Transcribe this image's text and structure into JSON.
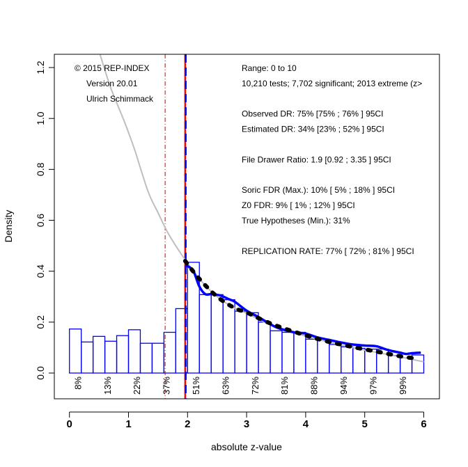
{
  "chart_data": {
    "type": "bar",
    "title": "",
    "xlabel": "absolute z-value",
    "ylabel": "Density",
    "xlim": [
      0,
      6
    ],
    "ylim": [
      -0.1,
      1.25
    ],
    "x_ticks": [
      "0",
      "1",
      "2",
      "3",
      "4",
      "5",
      "6"
    ],
    "x_tick_values": [
      0,
      1,
      2,
      3,
      4,
      5,
      6
    ],
    "y_ticks": [
      "0.0",
      "0.2",
      "0.4",
      "0.6",
      "0.8",
      "1.0",
      "1.2"
    ],
    "y_tick_values": [
      0.0,
      0.2,
      0.4,
      0.6,
      0.8,
      1.0,
      1.2
    ],
    "grid": false,
    "histogram": {
      "bin_width": 0.2,
      "bins": [
        {
          "x0": 0.0,
          "x1": 0.2,
          "density": 0.173
        },
        {
          "x0": 0.2,
          "x1": 0.4,
          "density": 0.122
        },
        {
          "x0": 0.4,
          "x1": 0.6,
          "density": 0.144
        },
        {
          "x0": 0.6,
          "x1": 0.8,
          "density": 0.125
        },
        {
          "x0": 0.8,
          "x1": 1.0,
          "density": 0.147
        },
        {
          "x0": 1.0,
          "x1": 1.2,
          "density": 0.17
        },
        {
          "x0": 1.2,
          "x1": 1.4,
          "density": 0.117
        },
        {
          "x0": 1.4,
          "x1": 1.6,
          "density": 0.117
        },
        {
          "x0": 1.6,
          "x1": 1.8,
          "density": 0.16
        },
        {
          "x0": 1.8,
          "x1": 2.0,
          "density": 0.253
        },
        {
          "x0": 2.0,
          "x1": 2.2,
          "density": 0.435
        },
        {
          "x0": 2.2,
          "x1": 2.4,
          "density": 0.308
        },
        {
          "x0": 2.4,
          "x1": 2.6,
          "density": 0.308
        },
        {
          "x0": 2.6,
          "x1": 2.8,
          "density": 0.288
        },
        {
          "x0": 2.8,
          "x1": 3.0,
          "density": 0.243
        },
        {
          "x0": 3.0,
          "x1": 3.2,
          "density": 0.237
        },
        {
          "x0": 3.2,
          "x1": 3.4,
          "density": 0.2
        },
        {
          "x0": 3.4,
          "x1": 3.6,
          "density": 0.166
        },
        {
          "x0": 3.6,
          "x1": 3.8,
          "density": 0.16
        },
        {
          "x0": 3.8,
          "x1": 4.0,
          "density": 0.16
        },
        {
          "x0": 4.0,
          "x1": 4.2,
          "density": 0.133
        },
        {
          "x0": 4.2,
          "x1": 4.4,
          "density": 0.133
        },
        {
          "x0": 4.4,
          "x1": 4.6,
          "density": 0.112
        },
        {
          "x0": 4.6,
          "x1": 4.8,
          "density": 0.103
        },
        {
          "x0": 4.8,
          "x1": 5.0,
          "density": 0.097
        },
        {
          "x0": 5.0,
          "x1": 5.2,
          "density": 0.094
        },
        {
          "x0": 5.2,
          "x1": 5.4,
          "density": 0.094
        },
        {
          "x0": 5.4,
          "x1": 5.6,
          "density": 0.069
        },
        {
          "x0": 5.6,
          "x1": 5.8,
          "density": 0.06
        },
        {
          "x0": 5.8,
          "x1": 6.0,
          "density": 0.071
        }
      ]
    },
    "series": [
      {
        "name": "gray-model-density",
        "color": "#bebebe",
        "style": "solid",
        "x": [
          0.52,
          0.7,
          0.93,
          1.1,
          1.33,
          1.5,
          1.65,
          1.8,
          1.96,
          2.2,
          2.5,
          2.8,
          3.0,
          3.3,
          3.6,
          4.0,
          4.5,
          5.0,
          5.5,
          6.0
        ],
        "y": [
          1.25,
          1.12,
          0.988,
          0.88,
          0.714,
          0.63,
          0.558,
          0.5,
          0.445,
          0.37,
          0.3,
          0.255,
          0.235,
          0.2,
          0.175,
          0.145,
          0.115,
          0.09,
          0.068,
          0.044
        ]
      },
      {
        "name": "blue-kernel-density",
        "color": "#0000ff",
        "style": "solid",
        "x": [
          1.96,
          2.0,
          2.1,
          2.2,
          2.3,
          2.4,
          2.55,
          2.7,
          2.8,
          3.0,
          3.2,
          3.5,
          3.8,
          4.0,
          4.2,
          4.4,
          4.6,
          4.8,
          5.0,
          5.2,
          5.4,
          5.6,
          5.7,
          5.8,
          5.95
        ],
        "y": [
          0.415,
          0.42,
          0.4,
          0.34,
          0.31,
          0.31,
          0.305,
          0.29,
          0.28,
          0.245,
          0.22,
          0.18,
          0.16,
          0.155,
          0.14,
          0.13,
          0.12,
          0.112,
          0.108,
          0.105,
          0.09,
          0.08,
          0.075,
          0.078,
          0.08
        ]
      },
      {
        "name": "black-dotted-fitted",
        "color": "#000000",
        "style": "dotted",
        "x": [
          1.96,
          2.2,
          2.5,
          2.8,
          3.0,
          3.3,
          3.6,
          4.0,
          4.3,
          4.6,
          5.0,
          5.3,
          5.6,
          5.9
        ],
        "y": [
          0.44,
          0.37,
          0.3,
          0.255,
          0.238,
          0.205,
          0.178,
          0.148,
          0.128,
          0.112,
          0.093,
          0.08,
          0.066,
          0.056
        ]
      }
    ],
    "vertical_lines": [
      {
        "name": "significance-line",
        "x": 1.96,
        "color": "#ff0000",
        "style": "solid"
      },
      {
        "name": "significance-line-blue",
        "x": 1.96,
        "color": "#0000ff",
        "style": "dashed"
      },
      {
        "name": "marginal-significance-line",
        "x": 1.65,
        "color": "#cd0000",
        "style": "dotdash"
      }
    ],
    "power_labels": [
      {
        "x": 0.15,
        "text": "8%"
      },
      {
        "x": 0.65,
        "text": "13%"
      },
      {
        "x": 1.15,
        "text": "22%"
      },
      {
        "x": 1.65,
        "text": "37%"
      },
      {
        "x": 2.15,
        "text": "51%"
      },
      {
        "x": 2.65,
        "text": "63%"
      },
      {
        "x": 3.15,
        "text": "72%"
      },
      {
        "x": 3.65,
        "text": "81%"
      },
      {
        "x": 4.15,
        "text": "88%"
      },
      {
        "x": 4.65,
        "text": "94%"
      },
      {
        "x": 5.15,
        "text": "97%"
      },
      {
        "x": 5.65,
        "text": "99%"
      }
    ],
    "annotations_left": [
      "© 2015 REP-INDEX",
      "Version 20.01",
      "Ulrich Schimmack"
    ],
    "annotations_right": [
      "Range: 0 to 10",
      "10,210 tests; 7,702 significant; 2013 extreme (z>",
      "",
      "Observed DR: 75% [75% ; 76% ] 95CI",
      "Estimated DR: 34% [23% ; 52% ] 95CI",
      "",
      "File Drawer Ratio: 1.9 [0.92 ; 3.35 ] 95CI",
      "",
      "Soric FDR (Max.): 10% [ 5% ; 18% ] 95CI",
      "Z0 FDR: 9% [ 1% ; 12% ] 95CI",
      "True Hypotheses (Min.): 31%",
      "",
      "REPLICATION RATE: 77% [ 72% ; 81% ] 95CI"
    ],
    "colors": {
      "histogram": "#0000ff",
      "significance": "#ff0000"
    }
  }
}
